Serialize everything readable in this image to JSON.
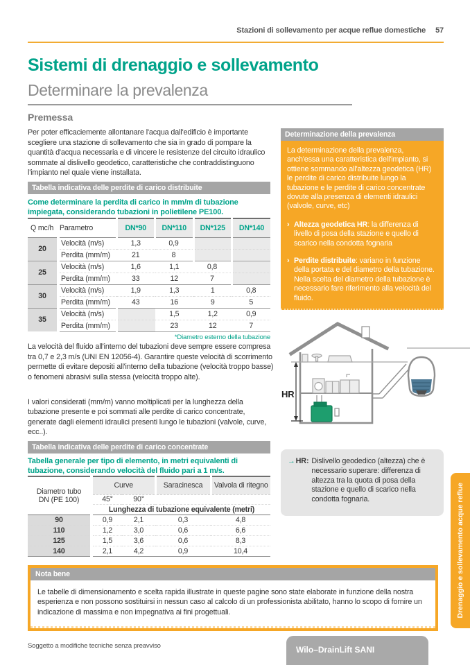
{
  "colors": {
    "teal": "#00A38A",
    "orange": "#F6A726",
    "gray_bar": "#A5A5A5",
    "shade": "#EAEAEA"
  },
  "header": {
    "title": "Stazioni di sollevamento per acque reflue domestiche",
    "page_number": "57"
  },
  "titles": {
    "main": "Sistemi di drenaggio e sollevamento",
    "sub": "Determinare la prevalenza",
    "section": "Premessa"
  },
  "intro_text": "Per poter efficaciemente allontanare l'acqua dall'edificio è importante scegliere una stazione di sollevamento che sia in grado di pompare la quantità d'acqua necessaria e di vincere le resistenze del circuito idraulico sommate al dislivello geodetico, caratteristiche che contraddistinguono l'impianto nel quale viene installata.",
  "table1": {
    "bar_title": "Tabella indicativa delle perdite di carico distribuite",
    "intro": "Come determinare la perdita di carico in mm/m di tubazione impiegata, considerando tubazioni in polietilene PE100.",
    "col_q": "Q mc/h",
    "col_param": "Parametro",
    "dn_headers": [
      "DN*90",
      "DN*110",
      "DN*125",
      "DN*140"
    ],
    "row_labels": {
      "velocita": "Velocità (m/s)",
      "perdita": "Perdita (mm/m)"
    },
    "groups": [
      {
        "q": "20",
        "velocita": [
          "1,3",
          "0,9",
          "",
          ""
        ],
        "perdita": [
          "21",
          "8",
          "",
          ""
        ]
      },
      {
        "q": "25",
        "velocita": [
          "1,6",
          "1,1",
          "0,8",
          ""
        ],
        "perdita": [
          "33",
          "12",
          "7",
          ""
        ]
      },
      {
        "q": "30",
        "velocita": [
          "1,9",
          "1,3",
          "1",
          "0,8"
        ],
        "perdita": [
          "43",
          "16",
          "9",
          "5"
        ]
      },
      {
        "q": "35",
        "velocita": [
          "",
          "1,5",
          "1,2",
          "0,9"
        ],
        "perdita": [
          "",
          "23",
          "12",
          "7"
        ]
      }
    ],
    "footnote": "*Diametro esterno della tubazione"
  },
  "body1": "La velocità del fluido all'interno del tubazioni deve sempre essere compresa tra 0,7 e 2,3 m/s (UNI EN 12056-4). Garantire queste velocità di scorrimento permette di evitare depositi all'interno della tubazione (velocità troppo basse) o fenomeni abrasivi sulla stessa (velocità troppo alte).",
  "body2": "I valori considerati (mm/m) vanno moltiplicati per la lunghezza della tubazione presente e poi sommati alle perdite di carico concentrate, generate dagli elementi idraulici presenti lungo le tubazioni (valvole, curve, ecc..).",
  "table2": {
    "bar_title": "Tabella indicativa delle perdite di carico concentrate",
    "intro": "Tabella generale per tipo di elemento, in metri equivalenti di tubazione, considerando velocità del fluido pari a 1 m/s.",
    "col1": "Diametro tubo DN (PE 100)",
    "col_curve": "Curve",
    "col_saracinesca": "Saracinesca",
    "col_valvola": "Valvola di ritegno",
    "curve_sub": [
      "45°",
      "90°"
    ],
    "span_header": "Lunghezza di tubazione equivalente (metri)",
    "rows": [
      {
        "dn": "90",
        "values": [
          "0,9",
          "2,1",
          "0,3",
          "4,8"
        ]
      },
      {
        "dn": "110",
        "values": [
          "1,2",
          "3,0",
          "0,6",
          "6,6"
        ]
      },
      {
        "dn": "125",
        "values": [
          "1,5",
          "3,6",
          "0,6",
          "8,3"
        ]
      },
      {
        "dn": "140",
        "values": [
          "2,1",
          "4,2",
          "0,9",
          "10,4"
        ]
      }
    ]
  },
  "prevalenza": {
    "bar_title": "Determinazione della prevalenza",
    "paragraph": "La determinazione della prevalenza, anch'essa una caratteristica dell'impianto, si ottiene sommando all'altezza geodetica (HR) le perdite di carico distribuite lungo la tubazione e le perdite di carico concentrate dovute alla presenza di elementi idraulici (valvole, curve, etc)",
    "bullet_marker": "›",
    "bullets": [
      {
        "bold": "Altezza geodetica HR",
        "rest": ": la differenza di livello di posa della stazione e quello di scarico nella condotta fognaria"
      },
      {
        "bold": "Perdite distribuite",
        "rest": ": variano in funzione della portata e del diametro della tubazione. Nella scelta del diametro della tubazione è necessario fare riferimento alla velocità del fluido."
      }
    ]
  },
  "diagram": {
    "hr_label": "HR"
  },
  "hr_note": {
    "arrow": "→",
    "bold": "HR:",
    "text": "Dislivello geodedico (altezza) che è necessario superare: differenza di altezza tra la quota di posa della stazione e quello di scarico nella condotta fognaria."
  },
  "nota_bene": {
    "bar_title": "Nota bene",
    "text": "Le tabelle di dimensionamento e scelta rapida illustrate in queste pagine sono state elaborate in funzione della nostra esperienza e non possono sostituirsi in nessun caso al calcolo di un professionista abilitato, hanno lo scopo di fornire un indicazione di massima e non impegnativa ai fini progettuali."
  },
  "footer": {
    "left": "Soggetto a modifiche tecniche senza preavviso",
    "product": "Wilo–DrainLift SANI"
  },
  "side_tab": {
    "label": "Drenaggio e sollevamento acque reflue"
  }
}
